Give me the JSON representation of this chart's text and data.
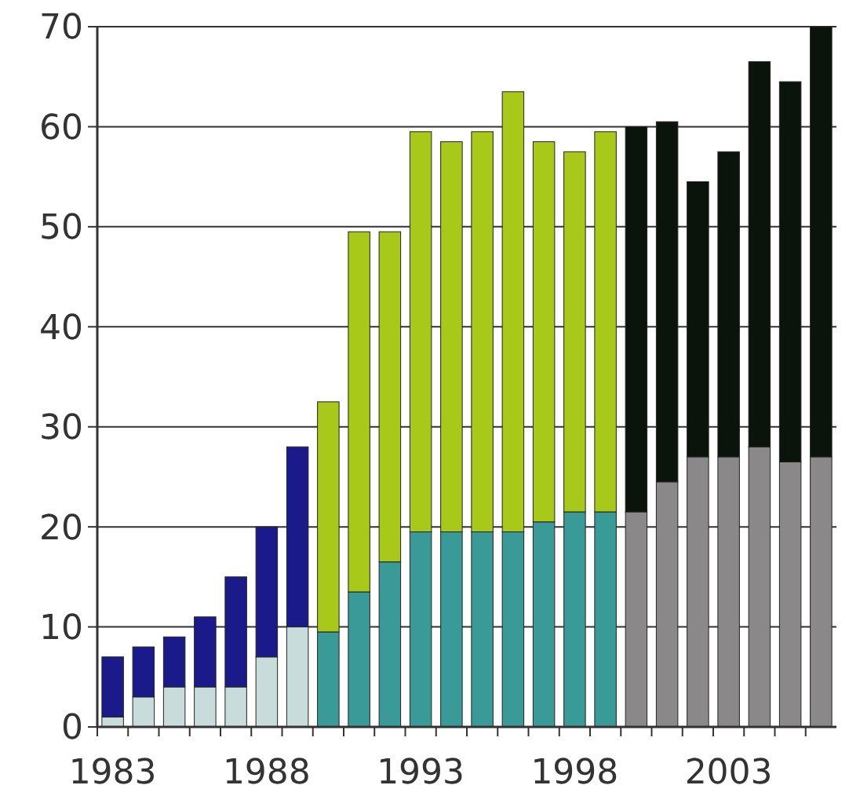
{
  "chart_data": {
    "type": "bar",
    "stacked": true,
    "categories": [
      "1983",
      null,
      null,
      null,
      null,
      "1988",
      null,
      null,
      null,
      null,
      "1993",
      null,
      null,
      null,
      null,
      "1998",
      null,
      null,
      null,
      null,
      "2003",
      null,
      null,
      null
    ],
    "series": [
      {
        "colors": [
          "#c8dcdc",
          "#c8dcdc",
          "#c8dcdc",
          "#c8dcdc",
          "#c8dcdc",
          "#c8dcdc",
          "#c8dcdc",
          "#3a9a98",
          "#3a9a98",
          "#3a9a98",
          "#3a9a98",
          "#3a9a98",
          "#3a9a98",
          "#3a9a98",
          "#3a9a98",
          "#3a9a98",
          "#3a9a98",
          "#8a8888",
          "#8a8888",
          "#8a8888",
          "#8a8888",
          "#8a8888",
          "#8a8888",
          "#8a8888"
        ],
        "values": [
          1,
          3,
          4,
          4,
          4,
          7,
          10,
          9.5,
          13.5,
          16.5,
          19.5,
          19.5,
          19.5,
          19.5,
          20.5,
          21.5,
          21.5,
          21.5,
          24.5,
          27,
          27,
          28,
          26.5,
          27
        ]
      },
      {
        "colors": [
          "#1a1a8a",
          "#1a1a8a",
          "#1a1a8a",
          "#1a1a8a",
          "#1a1a8a",
          "#1a1a8a",
          "#1a1a8a",
          "#a8c81a",
          "#a8c81a",
          "#a8c81a",
          "#a8c81a",
          "#a8c81a",
          "#a8c81a",
          "#a8c81a",
          "#a8c81a",
          "#a8c81a",
          "#a8c81a",
          "#0a140a",
          "#0a140a",
          "#0a140a",
          "#0a140a",
          "#0a140a",
          "#0a140a",
          "#0a140a"
        ],
        "values": [
          6,
          5,
          5,
          7,
          11,
          13,
          18,
          23,
          36,
          33,
          40,
          39,
          40,
          44,
          38,
          36,
          38,
          38.5,
          36,
          27.5,
          30.5,
          38.5,
          38,
          43
        ]
      }
    ],
    "ylim": [
      0,
      70
    ],
    "yticks": [
      0,
      10,
      20,
      30,
      40,
      50,
      60,
      70
    ],
    "grid": "y"
  }
}
